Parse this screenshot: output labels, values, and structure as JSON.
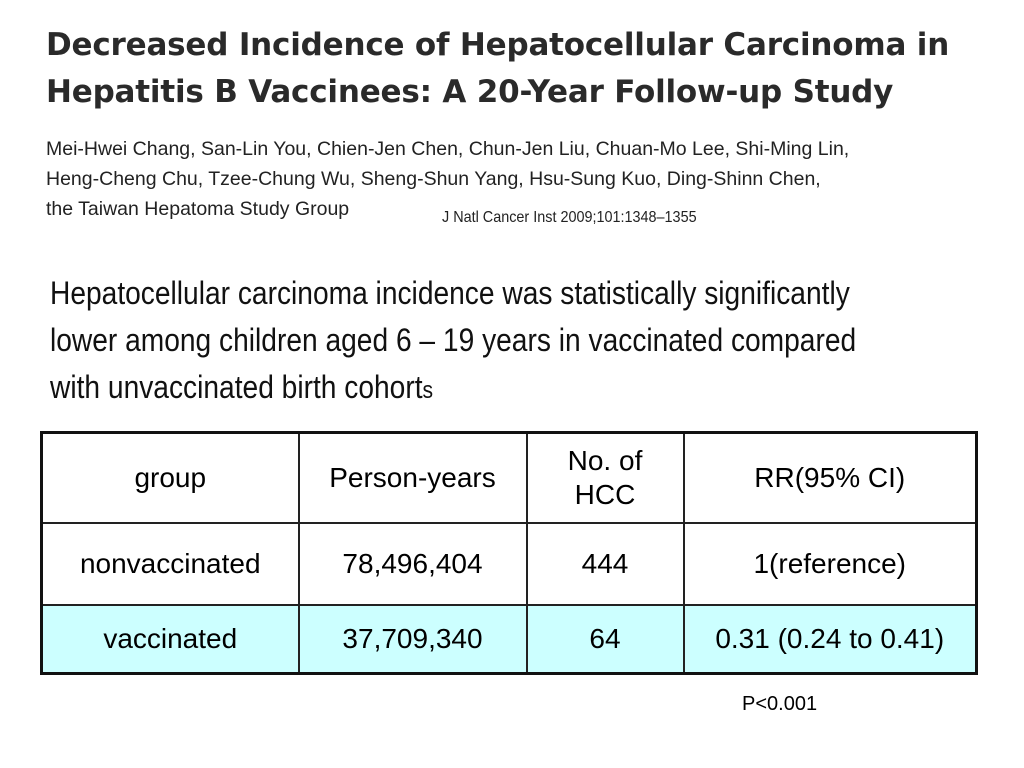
{
  "title": "Decreased Incidence of Hepatocellular Carcinoma in Hepatitis B Vaccinees: A 20-Year Follow-up Study",
  "authors": {
    "line1": "Mei-Hwei Chang, San-Lin You, Chien-Jen Chen, Chun-Jen Liu, Chuan-Mo Lee, Shi-Ming Lin,",
    "line2": "Heng-Cheng Chu, Tzee-Chung Wu, Sheng-Shun Yang, Hsu-Sung Kuo, Ding-Shinn Chen,",
    "line3": "the Taiwan Hepatoma Study Group"
  },
  "citation": "J Natl Cancer Inst 2009;101:1348–1355",
  "summary": {
    "text": "Hepatocellular carcinoma incidence was statistically significantly lower among children aged 6 – 19 years in vaccinated compared with unvaccinated birth cohort",
    "last_char": "s"
  },
  "table": {
    "headers": [
      "group",
      "Person-years",
      "No. of HCC",
      "RR(95% CI)"
    ],
    "rows": [
      [
        "nonvaccinated",
        "78,496,404",
        "444",
        "1(reference)"
      ],
      [
        "vaccinated",
        "37,709,340",
        "64",
        "0.31 (0.24 to 0.41)"
      ]
    ],
    "highlight_color": "#ccffff"
  },
  "p_value": "P<0.001"
}
